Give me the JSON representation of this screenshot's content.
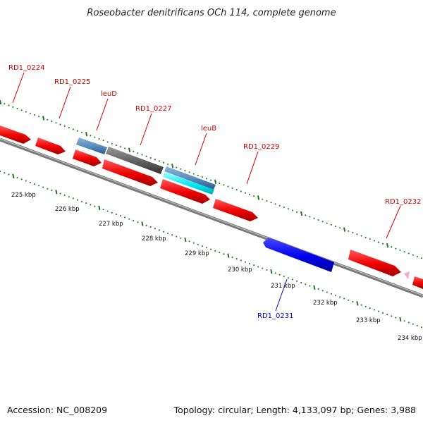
{
  "title": "Roseobacter denitrificans OCh 114, complete genome",
  "accession": "Accession: NC_008209",
  "summary": "Topology: circular; Length: 4,133,097 bp; Genes: 3,988",
  "colors": {
    "forward_cds": "#ff0000",
    "reverse_cds": "#0000ee",
    "label_forward": "#cc0000",
    "label_reverse": "#0000cc",
    "tick": "#1a7a1a",
    "backbone": "#808080",
    "steelblue_feature": "#4f86b8",
    "gray_feature": "#5a5a5a",
    "cyan_feature": "#00e5ee",
    "pink_feature": "#f4a9c8"
  },
  "scale_labels": [
    "225 kbp",
    "226 kbp",
    "227 kbp",
    "228 kbp",
    "229 kbp",
    "230 kbp",
    "231 kbp",
    "232 kbp",
    "233 kbp",
    "234 kbp"
  ],
  "gene_labels": [
    {
      "text": "RD1_0224",
      "strand": "forward"
    },
    {
      "text": "RD1_0225",
      "strand": "forward"
    },
    {
      "text": "leuD",
      "strand": "forward"
    },
    {
      "text": "RD1_0227",
      "strand": "forward"
    },
    {
      "text": "leuB",
      "strand": "forward"
    },
    {
      "text": "RD1_0229",
      "strand": "forward"
    },
    {
      "text": "RD1_0232",
      "strand": "forward"
    },
    {
      "text": "RD1_0231",
      "strand": "reverse"
    }
  ]
}
